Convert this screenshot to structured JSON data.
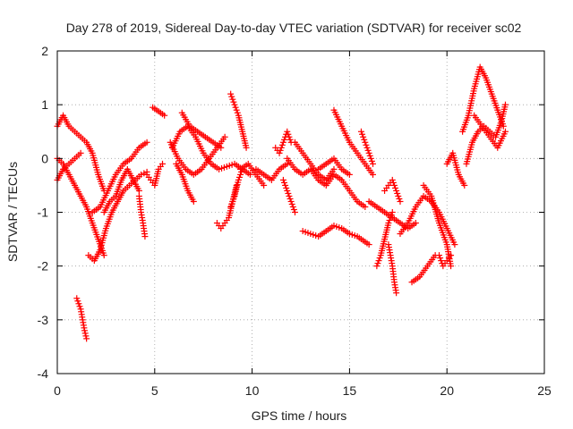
{
  "chart_data": {
    "type": "scatter",
    "title": "Day 278 of 2019, Sidereal Day-to-day VTEC variation (SDTVAR) for receiver sc02",
    "xlabel": "GPS time / hours",
    "ylabel": "SDTVAR / TECUs",
    "xlim": [
      0,
      25
    ],
    "ylim": [
      -4,
      2
    ],
    "xticks": [
      0,
      5,
      10,
      15,
      20,
      25
    ],
    "yticks": [
      -4,
      -3,
      -2,
      -1,
      0,
      1,
      2
    ],
    "grid": true,
    "marker": "+",
    "color": "#ff0000",
    "series": [
      {
        "name": "s1",
        "x": [
          0.0,
          0.3,
          0.6,
          0.9,
          1.2,
          1.5,
          1.8,
          2.1,
          2.4
        ],
        "y": [
          0.6,
          0.8,
          0.6,
          0.5,
          0.4,
          0.3,
          0.1,
          -0.3,
          -0.6
        ]
      },
      {
        "name": "s2",
        "x": [
          0.0,
          0.3,
          0.6,
          0.9,
          1.2,
          1.5,
          1.8,
          2.1,
          2.4
        ],
        "y": [
          0.0,
          -0.1,
          -0.3,
          -0.5,
          -0.7,
          -0.9,
          -1.2,
          -1.5,
          -1.8
        ]
      },
      {
        "name": "s3",
        "x": [
          0.0,
          0.3,
          0.6,
          0.9,
          1.2
        ],
        "y": [
          -0.4,
          -0.2,
          -0.1,
          0.0,
          0.1
        ]
      },
      {
        "name": "s4",
        "x": [
          1.0,
          1.1,
          1.2,
          1.3,
          1.4,
          1.5
        ],
        "y": [
          -2.6,
          -2.7,
          -2.8,
          -3.0,
          -3.2,
          -3.35
        ]
      },
      {
        "name": "s5",
        "x": [
          1.6,
          1.9,
          2.2,
          2.5,
          2.8,
          3.1,
          3.4,
          3.7,
          4.0,
          4.3,
          4.6
        ],
        "y": [
          -1.8,
          -1.9,
          -1.7,
          -1.3,
          -1.0,
          -0.8,
          -0.6,
          -0.5,
          -0.4,
          -0.3,
          -0.25
        ]
      },
      {
        "name": "s6",
        "x": [
          1.8,
          2.2,
          2.6,
          3.0,
          3.4,
          3.8,
          4.2,
          4.6
        ],
        "y": [
          -1.0,
          -0.9,
          -0.6,
          -0.3,
          -0.1,
          0.0,
          0.2,
          0.3
        ]
      },
      {
        "name": "s7",
        "x": [
          2.4,
          2.7,
          3.0,
          3.3,
          3.6,
          3.9,
          4.2
        ],
        "y": [
          -1.0,
          -0.8,
          -0.7,
          -0.4,
          -0.2,
          -0.4,
          -0.6
        ]
      },
      {
        "name": "s8",
        "x": [
          4.2,
          4.3,
          4.4,
          4.5
        ],
        "y": [
          -0.7,
          -1.0,
          -1.2,
          -1.45
        ]
      },
      {
        "name": "s9",
        "x": [
          4.6,
          4.8,
          5.0,
          5.2,
          5.4
        ],
        "y": [
          -0.3,
          -0.4,
          -0.5,
          -0.2,
          -0.1
        ]
      },
      {
        "name": "s10",
        "x": [
          4.9,
          5.1,
          5.3,
          5.5
        ],
        "y": [
          0.95,
          0.9,
          0.85,
          0.8
        ]
      },
      {
        "name": "s11",
        "x": [
          5.8,
          6.2,
          6.6,
          7.0,
          7.4,
          7.8,
          8.2,
          8.6
        ],
        "y": [
          0.3,
          0.0,
          -0.2,
          -0.3,
          -0.2,
          0.0,
          0.2,
          0.4
        ]
      },
      {
        "name": "s12",
        "x": [
          5.9,
          6.3,
          6.7,
          7.1,
          7.5,
          7.9,
          8.3,
          8.7,
          9.1,
          9.5,
          9.9
        ],
        "y": [
          0.2,
          0.5,
          0.6,
          0.4,
          0.1,
          -0.1,
          -0.2,
          -0.15,
          -0.1,
          -0.2,
          -0.3
        ]
      },
      {
        "name": "s13",
        "x": [
          6.1,
          6.4,
          6.7,
          7.0
        ],
        "y": [
          -0.1,
          -0.3,
          -0.6,
          -0.8
        ]
      },
      {
        "name": "s14",
        "x": [
          6.4,
          6.8,
          7.2,
          7.6,
          8.0,
          8.4
        ],
        "y": [
          0.85,
          0.6,
          0.5,
          0.4,
          0.3,
          0.2
        ]
      },
      {
        "name": "s15",
        "x": [
          8.2,
          8.4,
          8.6,
          8.8,
          9.0,
          9.2
        ],
        "y": [
          -1.2,
          -1.3,
          -1.2,
          -1.1,
          -0.8,
          -0.5
        ]
      },
      {
        "name": "s16",
        "x": [
          8.9,
          9.1,
          9.3,
          9.5
        ],
        "y": [
          -0.9,
          -0.7,
          -0.4,
          -0.2
        ]
      },
      {
        "name": "s17",
        "x": [
          8.9,
          9.1,
          9.3,
          9.5,
          9.7
        ],
        "y": [
          1.2,
          1.0,
          0.8,
          0.5,
          0.2
        ]
      },
      {
        "name": "s18",
        "x": [
          9.4,
          9.8,
          10.2,
          10.6
        ],
        "y": [
          -0.2,
          -0.1,
          -0.3,
          -0.5
        ]
      },
      {
        "name": "s19",
        "x": [
          10.2,
          10.6,
          11.0,
          11.4,
          11.8
        ],
        "y": [
          -0.2,
          -0.3,
          -0.4,
          -0.2,
          -0.1
        ]
      },
      {
        "name": "s20",
        "x": [
          11.2,
          11.4,
          11.6,
          11.8,
          12.0
        ],
        "y": [
          0.2,
          0.1,
          0.3,
          0.5,
          0.3
        ]
      },
      {
        "name": "s21",
        "x": [
          11.6,
          11.8,
          12.0,
          12.2
        ],
        "y": [
          -0.4,
          -0.6,
          -0.8,
          -1.0
        ]
      },
      {
        "name": "s22",
        "x": [
          11.8,
          12.2,
          12.6,
          13.0,
          13.4,
          13.8,
          14.2,
          14.6,
          15.0,
          15.4,
          15.8
        ],
        "y": [
          0.0,
          -0.2,
          -0.3,
          -0.2,
          -0.4,
          -0.5,
          -0.3,
          -0.4,
          -0.6,
          -0.8,
          -0.9
        ]
      },
      {
        "name": "s23",
        "x": [
          12.2,
          12.6,
          13.0,
          13.4,
          13.8,
          14.2
        ],
        "y": [
          0.3,
          0.1,
          -0.1,
          -0.3,
          -0.4,
          -0.2
        ]
      },
      {
        "name": "s24",
        "x": [
          12.6,
          13.0,
          13.4,
          13.8,
          14.2,
          14.6,
          15.0,
          15.4,
          15.8,
          16.0
        ],
        "y": [
          -1.35,
          -1.4,
          -1.45,
          -1.35,
          -1.25,
          -1.3,
          -1.4,
          -1.45,
          -1.55,
          -1.6
        ]
      },
      {
        "name": "s25",
        "x": [
          13.4,
          13.8,
          14.2,
          14.6,
          15.0
        ],
        "y": [
          -0.2,
          -0.1,
          0.0,
          -0.2,
          -0.3
        ]
      },
      {
        "name": "s26",
        "x": [
          14.2,
          14.6,
          15.0,
          15.4,
          15.8,
          16.2
        ],
        "y": [
          0.9,
          0.6,
          0.3,
          0.1,
          -0.1,
          -0.3
        ]
      },
      {
        "name": "s27",
        "x": [
          15.6,
          15.8,
          16.0,
          16.2
        ],
        "y": [
          0.5,
          0.3,
          0.1,
          -0.1
        ]
      },
      {
        "name": "s28",
        "x": [
          16.0,
          16.4,
          16.8,
          17.2,
          17.6,
          18.0,
          18.4
        ],
        "y": [
          -0.8,
          -0.9,
          -1.0,
          -1.1,
          -1.2,
          -1.3,
          -1.2
        ]
      },
      {
        "name": "s29",
        "x": [
          16.4,
          16.6,
          16.8,
          17.0,
          17.2
        ],
        "y": [
          -2.0,
          -1.8,
          -1.5,
          -1.2,
          -1.0
        ]
      },
      {
        "name": "s30",
        "x": [
          17.0,
          17.1,
          17.2,
          17.3,
          17.4
        ],
        "y": [
          -1.6,
          -1.8,
          -2.0,
          -2.3,
          -2.5
        ]
      },
      {
        "name": "s31",
        "x": [
          16.8,
          17.0,
          17.2,
          17.4,
          17.6
        ],
        "y": [
          -0.6,
          -0.5,
          -0.4,
          -0.6,
          -0.8
        ]
      },
      {
        "name": "s32",
        "x": [
          17.6,
          18.0,
          18.4,
          18.8,
          19.2,
          19.6,
          20.0,
          20.4
        ],
        "y": [
          -1.4,
          -1.2,
          -0.9,
          -0.7,
          -0.8,
          -1.0,
          -1.3,
          -1.6
        ]
      },
      {
        "name": "s33",
        "x": [
          18.2,
          18.6,
          19.0,
          19.4
        ],
        "y": [
          -2.3,
          -2.2,
          -2.0,
          -1.8
        ]
      },
      {
        "name": "s34",
        "x": [
          18.8,
          19.2,
          19.6,
          20.0,
          20.2
        ],
        "y": [
          -0.5,
          -0.7,
          -1.2,
          -1.6,
          -2.0
        ]
      },
      {
        "name": "s35",
        "x": [
          19.6,
          19.8,
          20.0,
          20.2
        ],
        "y": [
          -1.8,
          -2.0,
          -1.9,
          -1.8
        ]
      },
      {
        "name": "s36",
        "x": [
          20.0,
          20.3,
          20.6,
          20.9
        ],
        "y": [
          -0.1,
          0.1,
          -0.3,
          -0.5
        ]
      },
      {
        "name": "s37",
        "x": [
          20.8,
          21.1,
          21.4,
          21.7,
          22.0,
          22.3,
          22.6,
          22.9
        ],
        "y": [
          0.5,
          0.8,
          1.3,
          1.7,
          1.5,
          1.2,
          0.9,
          0.6
        ]
      },
      {
        "name": "s38",
        "x": [
          21.0,
          21.3,
          21.6,
          21.9,
          22.2,
          22.5,
          22.8,
          23.0
        ],
        "y": [
          -0.1,
          0.3,
          0.5,
          0.6,
          0.5,
          0.4,
          0.7,
          1.0
        ]
      },
      {
        "name": "s39",
        "x": [
          21.4,
          21.8,
          22.2,
          22.6,
          23.0
        ],
        "y": [
          0.8,
          0.6,
          0.4,
          0.2,
          0.5
        ]
      }
    ]
  }
}
